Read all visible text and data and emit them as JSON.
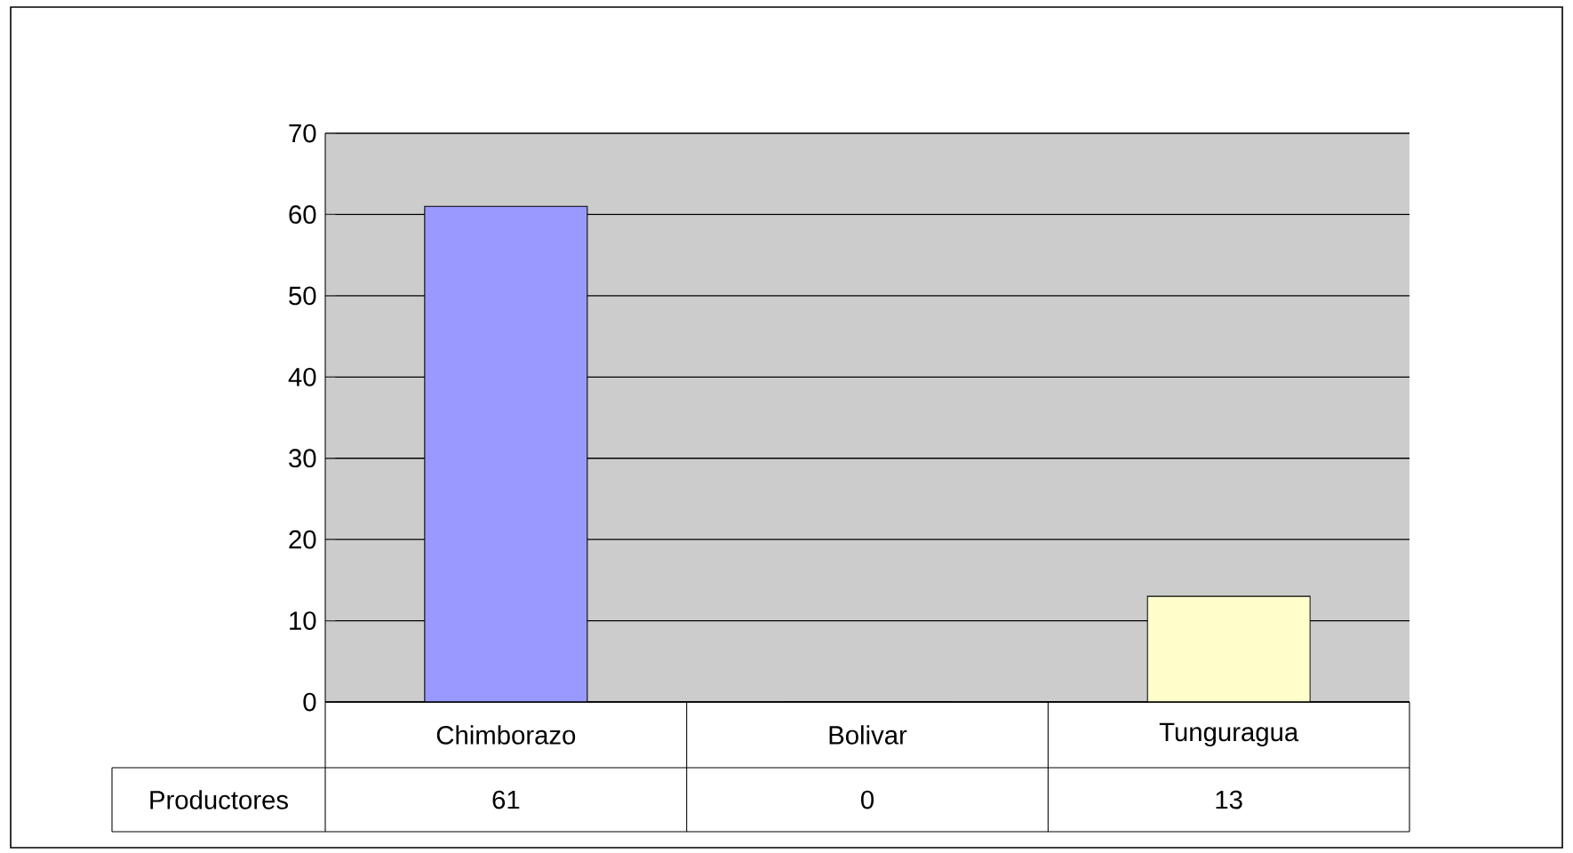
{
  "chart_data": {
    "type": "bar",
    "categories": [
      "Chimborazo",
      "Bolivar",
      "Tunguragua"
    ],
    "series": [
      {
        "name": "Productores",
        "colors": [
          "#9999ff",
          "#993366",
          "#ffffcc"
        ],
        "values": [
          61,
          0,
          13
        ],
        "value_labels": [
          "61",
          "0",
          "13"
        ]
      }
    ],
    "ylim": [
      0,
      70
    ],
    "yticks": [
      0,
      10,
      20,
      30,
      40,
      50,
      60,
      70
    ],
    "grid": "y"
  }
}
